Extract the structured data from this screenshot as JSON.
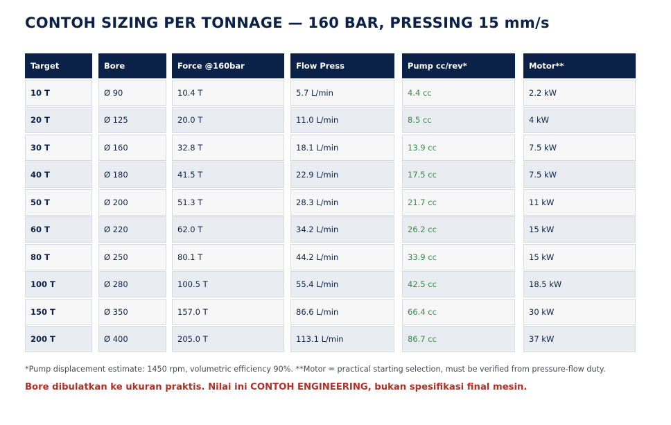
{
  "title": "CONTOH SIZING PER TONNAGE — 160 BAR, PRESSING 15 mm/s",
  "table": {
    "headers": [
      "Target",
      "Bore",
      "Force @160bar",
      "Flow Press",
      "Pump cc/rev*",
      "Motor**"
    ],
    "rows": [
      [
        "10 T",
        "Ø 90",
        "10.4 T",
        "5.7 L/min",
        "4.4 cc",
        "2.2 kW"
      ],
      [
        "20 T",
        "Ø 125",
        "20.0 T",
        "11.0 L/min",
        "8.5 cc",
        "4 kW"
      ],
      [
        "30 T",
        "Ø 160",
        "32.8 T",
        "18.1 L/min",
        "13.9 cc",
        "7.5 kW"
      ],
      [
        "40 T",
        "Ø 180",
        "41.5 T",
        "22.9 L/min",
        "17.5 cc",
        "7.5 kW"
      ],
      [
        "50 T",
        "Ø 200",
        "51.3 T",
        "28.3 L/min",
        "21.7 cc",
        "11 kW"
      ],
      [
        "60 T",
        "Ø 220",
        "62.0 T",
        "34.2 L/min",
        "26.2 cc",
        "15 kW"
      ],
      [
        "80 T",
        "Ø 250",
        "80.1 T",
        "44.2 L/min",
        "33.9 cc",
        "15 kW"
      ],
      [
        "100 T",
        "Ø 280",
        "100.5 T",
        "55.4 L/min",
        "42.5 cc",
        "18.5 kW"
      ],
      [
        "150 T",
        "Ø 350",
        "157.0 T",
        "86.6 L/min",
        "66.4 cc",
        "30 kW"
      ],
      [
        "200 T",
        "Ø 400",
        "205.0 T",
        "113.1 L/min",
        "86.7 cc",
        "37 kW"
      ]
    ]
  },
  "footnote": "*Pump displacement estimate: 1450 rpm, volumetric efficiency 90%.  **Motor = practical starting selection, must be verified from pressure-flow duty.",
  "warning": "Bore dibulatkan ke ukuran praktis. Nilai ini CONTOH ENGINEERING, bukan spesifikasi final mesin.",
  "colors": {
    "header_bg": "#0b2148",
    "pump_text": "#2e8b46",
    "warning_text": "#b0302a"
  }
}
